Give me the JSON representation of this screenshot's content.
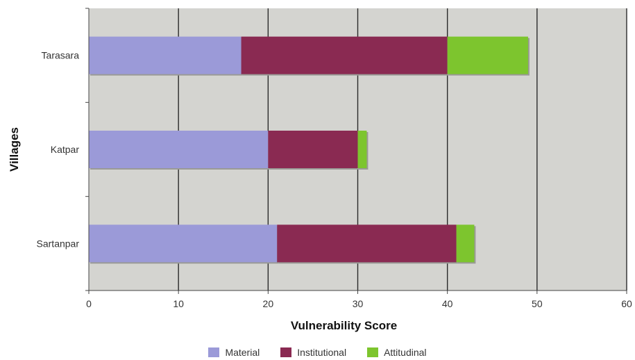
{
  "chart_data": {
    "type": "bar",
    "orientation": "horizontal",
    "stacked": true,
    "categories": [
      "Tarasara",
      "Katpar",
      "Sartanpar"
    ],
    "series": [
      {
        "name": "Material",
        "values": [
          17,
          20,
          21
        ],
        "color": "#9b9ad8"
      },
      {
        "name": "Institutional",
        "values": [
          23,
          10,
          20
        ],
        "color": "#8a2a52"
      },
      {
        "name": "Attitudinal",
        "values": [
          9,
          1,
          2
        ],
        "color": "#7dc52e"
      }
    ],
    "xlabel": "Vulnerability Score",
    "ylabel": "Villages",
    "xlim": [
      0,
      60
    ],
    "xticks": [
      "0",
      "10",
      "20",
      "30",
      "40",
      "50",
      "60"
    ],
    "grid": true,
    "legend_position": "bottom",
    "plot_background": "#d4d4d0"
  }
}
